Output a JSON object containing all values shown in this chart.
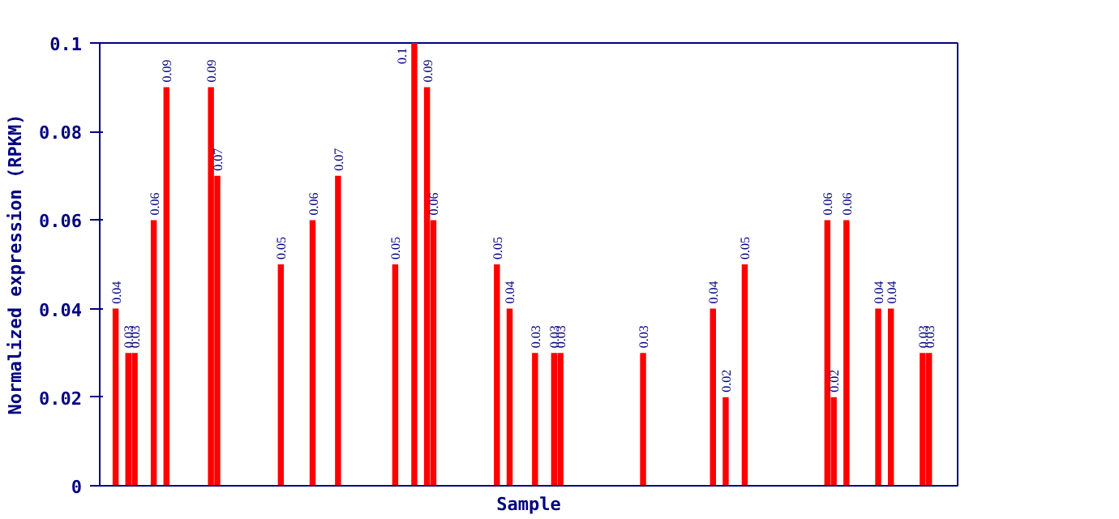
{
  "chart_data": {
    "type": "bar",
    "xlabel": "Sample",
    "ylabel": "Normalized expression (RPKM)",
    "categories": [
      null,
      null,
      null,
      null,
      null,
      null,
      null,
      null,
      null,
      null,
      null,
      null,
      null,
      null,
      null,
      null,
      null,
      null,
      null,
      null,
      null,
      null,
      null,
      null,
      null,
      null,
      null,
      null,
      null,
      null,
      null,
      null,
      null,
      null,
      null,
      null,
      null,
      null,
      null,
      null,
      null,
      null,
      null,
      null,
      null,
      null,
      null,
      null,
      null,
      null,
      null,
      null,
      null,
      null,
      null,
      null,
      null,
      null,
      null,
      null,
      null,
      null,
      null,
      null,
      null,
      null,
      null,
      null,
      null,
      null,
      null,
      null,
      null,
      null,
      null,
      null,
      null,
      null,
      null,
      null,
      null,
      null,
      null,
      null,
      null,
      null,
      null,
      null,
      null,
      null,
      null,
      null,
      null,
      null,
      null,
      null,
      null,
      null,
      null,
      null,
      null,
      null,
      null,
      null,
      null,
      null,
      null,
      null,
      null,
      null,
      null,
      null,
      null,
      null,
      null,
      null,
      null,
      null,
      null,
      null,
      null,
      null,
      null,
      null,
      null,
      null,
      null,
      null,
      null,
      null,
      null,
      null,
      null,
      null,
      null
    ],
    "values": [
      0,
      0,
      0.04,
      0,
      0.03,
      0.03,
      0,
      0,
      0.06,
      0,
      0.09,
      0,
      0,
      0,
      0,
      0,
      0,
      0.09,
      0.07,
      0,
      0,
      0,
      0,
      0,
      0,
      0,
      0,
      0,
      0.05,
      0,
      0,
      0,
      0,
      0.06,
      0,
      0,
      0,
      0.07,
      0,
      0,
      0,
      0,
      0,
      0,
      0,
      0,
      0.05,
      0,
      0,
      0.1,
      0,
      0.09,
      0.06,
      0,
      0,
      0,
      0,
      0,
      0,
      0,
      0,
      0,
      0.05,
      0,
      0.04,
      0,
      0,
      0,
      0.03,
      0,
      0,
      0.03,
      0.03,
      0,
      0,
      0,
      0,
      0,
      0,
      0,
      0,
      0,
      0,
      0,
      0,
      0.03,
      0,
      0,
      0,
      0,
      0,
      0,
      0,
      0,
      0,
      0,
      0.04,
      0,
      0.02,
      0,
      0,
      0.05,
      0,
      0,
      0,
      0,
      0,
      0,
      0,
      0,
      0,
      0,
      0,
      0,
      0.06,
      0.02,
      0,
      0.06,
      0,
      0,
      0,
      0,
      0.04,
      0,
      0.04,
      0,
      0,
      0,
      0,
      0.03,
      0.03,
      0,
      0,
      0,
      0
    ],
    "value_labels": [
      null,
      null,
      "0.04",
      null,
      "0.03",
      "0.03",
      null,
      null,
      "0.06",
      null,
      "0.09",
      null,
      null,
      null,
      null,
      null,
      null,
      "0.09",
      "0.07",
      null,
      null,
      null,
      null,
      null,
      null,
      null,
      null,
      null,
      "0.05",
      null,
      null,
      null,
      null,
      "0.06",
      null,
      null,
      null,
      "0.07",
      null,
      null,
      null,
      null,
      null,
      null,
      null,
      null,
      "0.05",
      null,
      null,
      "0.1",
      null,
      "0.09",
      "0.06",
      null,
      null,
      null,
      null,
      null,
      null,
      null,
      null,
      null,
      "0.05",
      null,
      "0.04",
      null,
      null,
      null,
      "0.03",
      null,
      null,
      "0.03",
      "0.03",
      null,
      null,
      null,
      null,
      null,
      null,
      null,
      null,
      null,
      null,
      null,
      null,
      "0.03",
      null,
      null,
      null,
      null,
      null,
      null,
      null,
      null,
      null,
      null,
      "0.04",
      null,
      "0.02",
      null,
      null,
      "0.05",
      null,
      null,
      null,
      null,
      null,
      null,
      null,
      null,
      null,
      null,
      null,
      null,
      "0.06",
      "0.02",
      null,
      "0.06",
      null,
      null,
      null,
      null,
      "0.04",
      null,
      "0.04",
      null,
      null,
      null,
      null,
      "0.03",
      "0.03",
      null,
      null,
      null,
      null
    ],
    "color": "#ff0000",
    "ylim": [
      0,
      0.1
    ],
    "yticks": [
      0,
      0.02,
      0.04,
      0.06,
      0.08,
      0.1
    ],
    "grid": false
  }
}
